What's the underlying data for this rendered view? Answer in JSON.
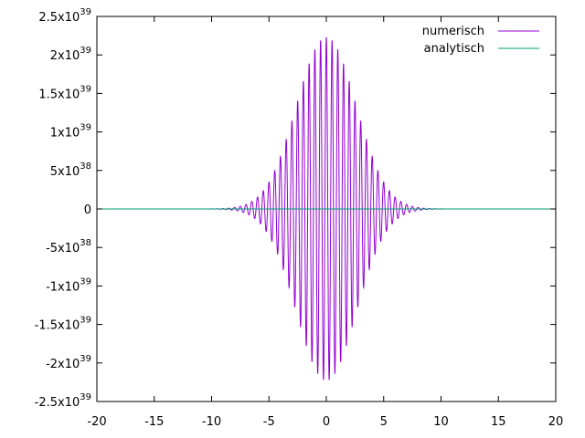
{
  "chart_data": {
    "type": "line",
    "xlim": [
      -20,
      20
    ],
    "ylim": [
      -2.5e+39,
      2.5e+39
    ],
    "x_ticks": [
      {
        "value": -20,
        "label": "-20"
      },
      {
        "value": -15,
        "label": "-15"
      },
      {
        "value": -10,
        "label": "-10"
      },
      {
        "value": -5,
        "label": "-5"
      },
      {
        "value": 0,
        "label": "0"
      },
      {
        "value": 5,
        "label": "5"
      },
      {
        "value": 10,
        "label": "10"
      },
      {
        "value": 15,
        "label": "15"
      },
      {
        "value": 20,
        "label": "20"
      }
    ],
    "y_ticks": [
      {
        "value": 2.5e+39,
        "mantissa": "2.5x10",
        "exp": "39"
      },
      {
        "value": 2e+39,
        "mantissa": "2x10",
        "exp": "39"
      },
      {
        "value": 1.5e+39,
        "mantissa": "1.5x10",
        "exp": "39"
      },
      {
        "value": 1e+39,
        "mantissa": "1x10",
        "exp": "39"
      },
      {
        "value": 5e+38,
        "mantissa": "5x10",
        "exp": "38"
      },
      {
        "value": 0,
        "mantissa": "0",
        "exp": ""
      },
      {
        "value": -5e+38,
        "mantissa": "-5x10",
        "exp": "38"
      },
      {
        "value": -1e+39,
        "mantissa": "-1x10",
        "exp": "39"
      },
      {
        "value": -1.5e+39,
        "mantissa": "-1.5x10",
        "exp": "39"
      },
      {
        "value": -2e+39,
        "mantissa": "-2x10",
        "exp": "39"
      },
      {
        "value": -2.5e+39,
        "mantissa": "-2.5x10",
        "exp": "39"
      }
    ],
    "series": [
      {
        "name": "numerisch",
        "color": "#9400d3",
        "form": "gaussian-modulated oscillation",
        "peak_amplitude": 2.23e+39,
        "gaussian_sigma": 2.6,
        "oscillation_period": 0.5,
        "x_range": [
          -20,
          20
        ]
      },
      {
        "name": "analytisch",
        "color": "#009e73",
        "form": "flat near zero",
        "values": [
          {
            "x": -20,
            "y": 0
          },
          {
            "x": 20,
            "y": 0
          }
        ]
      }
    ],
    "legend_position": "top-right",
    "grid": false
  }
}
